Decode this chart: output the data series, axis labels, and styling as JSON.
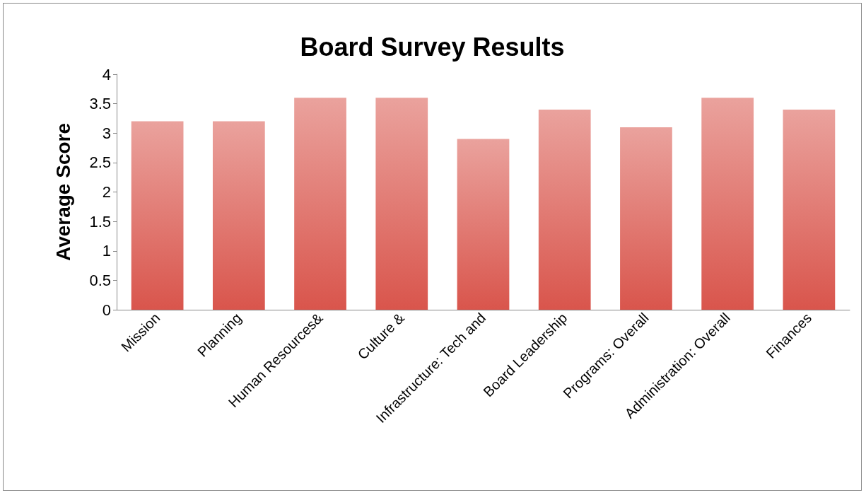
{
  "chart_data": {
    "type": "bar",
    "title": "Board Survey Results",
    "ylabel": "Average Score",
    "categories": [
      "Mission",
      "Planning",
      "Human Resources&",
      "Culture &",
      "Infrastructure: Tech and",
      "Board Leadership",
      "Programs: Overall",
      "Administration: Overall",
      "Finances"
    ],
    "values": [
      3.2,
      3.2,
      3.6,
      3.6,
      2.9,
      3.4,
      3.1,
      3.6,
      3.4
    ],
    "color": "#d9554c",
    "ylim": [
      0,
      4
    ],
    "yticks": [
      0,
      0.5,
      1,
      1.5,
      2,
      2.5,
      3,
      3.5,
      4
    ],
    "grid": false
  }
}
